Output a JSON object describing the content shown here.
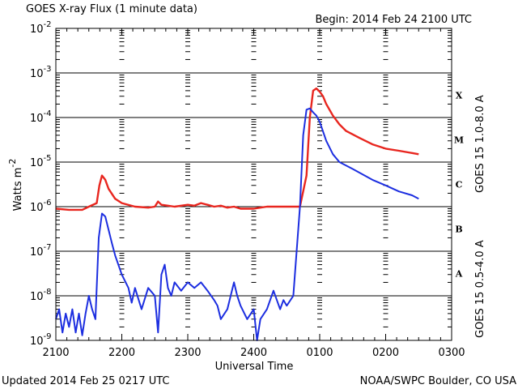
{
  "chart_data": {
    "type": "line",
    "title": "GOES X-ray Flux (1 minute data)",
    "begin_label": "Begin: 2014 Feb 24 2100 UTC",
    "xlabel": "Universal Time",
    "ylabel_base": "Watts m",
    "ylabel_exp": "-2",
    "x_ticks": [
      "2100",
      "2200",
      "2300",
      "2400",
      "0100",
      "0200",
      "0300"
    ],
    "x_range_hours": [
      0,
      6
    ],
    "ylim_log10": [
      -9,
      -2
    ],
    "y_ticks": [
      {
        "base": "10",
        "exp": "-2"
      },
      {
        "base": "10",
        "exp": "-3"
      },
      {
        "base": "10",
        "exp": "-4"
      },
      {
        "base": "10",
        "exp": "-5"
      },
      {
        "base": "10",
        "exp": "-6"
      },
      {
        "base": "10",
        "exp": "-7"
      },
      {
        "base": "10",
        "exp": "-8"
      },
      {
        "base": "10",
        "exp": "-9"
      }
    ],
    "flare_classes": [
      "X",
      "M",
      "C",
      "B",
      "A"
    ],
    "series": [
      {
        "name": "GOES 15 1.0-8.0 A",
        "color": "#e8261f",
        "x_hours": [
          0.0,
          0.2,
          0.4,
          0.5,
          0.62,
          0.66,
          0.7,
          0.75,
          0.8,
          0.9,
          1.0,
          1.2,
          1.4,
          1.5,
          1.55,
          1.6,
          1.7,
          1.8,
          2.0,
          2.1,
          2.2,
          2.3,
          2.4,
          2.5,
          2.6,
          2.7,
          2.8,
          3.0,
          3.1,
          3.2,
          3.3,
          3.5,
          3.6,
          3.7,
          3.8,
          3.85,
          3.9,
          3.95,
          4.0,
          4.05,
          4.1,
          4.2,
          4.3,
          4.4,
          4.6,
          4.8,
          5.0,
          5.2,
          5.4,
          5.5
        ],
        "values": [
          9e-07,
          8.5e-07,
          8.5e-07,
          1e-06,
          1.2e-06,
          3e-06,
          5e-06,
          4e-06,
          2.5e-06,
          1.5e-06,
          1.2e-06,
          1e-06,
          9.5e-07,
          1e-06,
          1.3e-06,
          1.1e-06,
          1.05e-06,
          1e-06,
          1.1e-06,
          1.05e-06,
          1.2e-06,
          1.1e-06,
          1e-06,
          1.05e-06,
          9.5e-07,
          1e-06,
          9e-07,
          9e-07,
          9.5e-07,
          1e-06,
          1e-06,
          1e-06,
          1e-06,
          1e-06,
          5e-06,
          0.0001,
          0.0004,
          0.00045,
          0.00038,
          0.0003,
          0.0002,
          0.00011,
          7e-05,
          5e-05,
          3.5e-05,
          2.5e-05,
          2e-05,
          1.8e-05,
          1.6e-05,
          1.5e-05
        ]
      },
      {
        "name": "GOES 15 0.5-4.0 A",
        "color": "#1c2ee0",
        "x_hours": [
          0.0,
          0.05,
          0.1,
          0.15,
          0.2,
          0.25,
          0.3,
          0.35,
          0.4,
          0.45,
          0.5,
          0.55,
          0.6,
          0.65,
          0.7,
          0.75,
          0.8,
          0.85,
          0.9,
          1.0,
          1.1,
          1.15,
          1.2,
          1.3,
          1.4,
          1.5,
          1.55,
          1.6,
          1.65,
          1.7,
          1.75,
          1.8,
          1.9,
          2.0,
          2.1,
          2.2,
          2.3,
          2.4,
          2.45,
          2.5,
          2.6,
          2.7,
          2.75,
          2.8,
          2.9,
          3.0,
          3.05,
          3.1,
          3.2,
          3.3,
          3.4,
          3.45,
          3.5,
          3.6,
          3.7,
          3.75,
          3.8,
          3.85,
          3.9,
          3.95,
          4.0,
          4.1,
          4.2,
          4.3,
          4.5,
          4.8,
          5.0,
          5.2,
          5.4,
          5.5
        ],
        "values": [
          3e-09,
          5e-09,
          1.5e-09,
          4e-09,
          2e-09,
          5e-09,
          1.5e-09,
          4e-09,
          1.3e-09,
          4e-09,
          1e-08,
          5e-09,
          3e-09,
          2e-07,
          7e-07,
          6e-07,
          3e-07,
          1.5e-07,
          8e-08,
          3e-08,
          1.5e-08,
          7e-09,
          1.5e-08,
          5e-09,
          1.5e-08,
          1e-08,
          1.5e-09,
          3e-08,
          5e-08,
          1.5e-08,
          1e-08,
          2e-08,
          1.3e-08,
          2e-08,
          1.5e-08,
          2e-08,
          1.3e-08,
          8e-09,
          6e-09,
          3e-09,
          5e-09,
          2e-08,
          1e-08,
          6e-09,
          3e-09,
          5e-09,
          1e-09,
          3e-09,
          5e-09,
          1.3e-08,
          5e-09,
          8e-09,
          6e-09,
          1e-08,
          1e-06,
          4e-05,
          0.00015,
          0.00016,
          0.00013,
          0.00011,
          8e-05,
          3e-05,
          1.5e-05,
          1e-05,
          7e-06,
          4e-06,
          3e-06,
          2.2e-06,
          1.8e-06,
          1.5e-06
        ]
      }
    ]
  },
  "footer": {
    "updated": "Updated 2014 Feb 25 0217 UTC",
    "source": "NOAA/SWPC Boulder, CO USA"
  }
}
